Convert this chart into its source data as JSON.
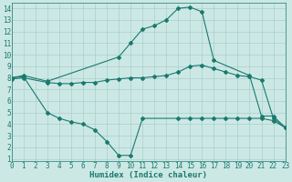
{
  "line1_x": [
    0,
    1,
    3,
    9,
    10,
    11,
    12,
    13,
    14,
    15,
    16,
    17,
    20,
    21,
    22,
    23
  ],
  "line1_y": [
    8.0,
    8.2,
    7.7,
    9.8,
    11.0,
    12.2,
    12.5,
    13.0,
    14.0,
    14.1,
    13.7,
    9.5,
    8.2,
    4.7,
    4.7,
    3.7
  ],
  "line2_x": [
    0,
    1,
    3,
    4,
    5,
    6,
    7,
    8,
    9,
    10,
    11,
    12,
    13,
    14,
    15,
    16,
    17,
    18,
    19,
    20,
    21,
    22,
    23
  ],
  "line2_y": [
    7.9,
    8.0,
    7.6,
    7.5,
    7.5,
    7.6,
    7.6,
    7.8,
    7.9,
    8.0,
    8.0,
    8.1,
    8.2,
    8.5,
    9.0,
    9.1,
    8.8,
    8.5,
    8.2,
    8.1,
    7.8,
    4.5,
    3.7
  ],
  "line3_x": [
    0,
    1,
    3,
    4,
    5,
    6,
    7,
    8,
    9,
    10,
    11,
    14,
    15,
    16,
    17,
    18,
    19,
    20,
    21,
    22,
    23
  ],
  "line3_y": [
    8.0,
    8.1,
    5.0,
    4.5,
    4.2,
    4.0,
    3.5,
    2.5,
    1.3,
    1.3,
    4.5,
    4.5,
    4.5,
    4.5,
    4.5,
    4.5,
    4.5,
    4.5,
    4.5,
    4.3,
    3.7
  ],
  "line_color": "#1a7a6e",
  "bg_color": "#cce8e5",
  "grid_color": "#aacfcc",
  "xlabel": "Humidex (Indice chaleur)",
  "xlabel_fontsize": 6.5,
  "tick_fontsize": 5.5,
  "xlim": [
    0,
    23
  ],
  "ylim": [
    0.8,
    14.5
  ],
  "yticks": [
    1,
    2,
    3,
    4,
    5,
    6,
    7,
    8,
    9,
    10,
    11,
    12,
    13,
    14
  ],
  "xticks": [
    0,
    1,
    2,
    3,
    4,
    5,
    6,
    7,
    8,
    9,
    10,
    11,
    12,
    13,
    14,
    15,
    16,
    17,
    18,
    19,
    20,
    21,
    22,
    23
  ],
  "marker": "D",
  "marker_size": 2.0,
  "line_width": 0.8
}
